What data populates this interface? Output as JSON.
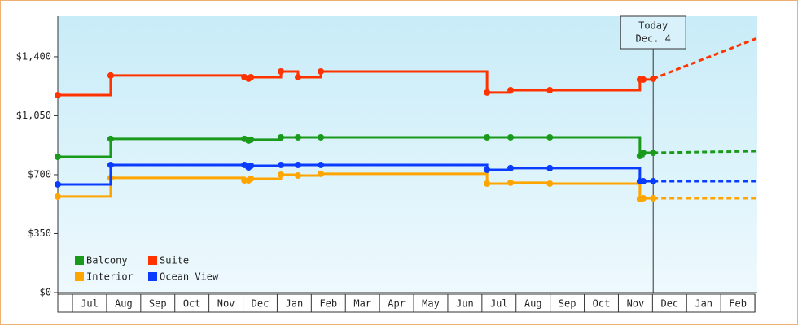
{
  "chart_data": {
    "type": "step-line",
    "xlim": [
      -0.43,
      20.07
    ],
    "ylim": [
      0,
      1641
    ],
    "yticks": [
      {
        "value": 0,
        "label": "$0"
      },
      {
        "value": 350,
        "label": "$350"
      },
      {
        "value": 700,
        "label": "$700"
      },
      {
        "value": 1050,
        "label": "$1,050"
      },
      {
        "value": 1400,
        "label": "$1,400"
      }
    ],
    "categories": [
      "Jul",
      "Aug",
      "Sep",
      "Oct",
      "Nov",
      "Dec",
      "Jan",
      "Feb",
      "Mar",
      "Apr",
      "May",
      "Jun",
      "Jul",
      "Aug",
      "Sep",
      "Oct",
      "Nov",
      "Dec",
      "Jan",
      "Feb"
    ],
    "x": [
      -0.43,
      1.12,
      5.04,
      5.16,
      5.23,
      6.11,
      6.61,
      7.28,
      12.15,
      12.84,
      13.99,
      16.63,
      16.73,
      17.02
    ],
    "projection_x": [
      17.02,
      20.07
    ],
    "series": [
      {
        "name": "Balcony",
        "color": "#1a9a1a",
        "values": [
          806,
          913,
          913,
          903,
          908,
          922,
          922,
          922,
          922,
          922,
          922,
          811,
          830,
          830
        ],
        "projection": [
          830,
          840
        ]
      },
      {
        "name": "Suite",
        "color": "#ff3300",
        "values": [
          1173,
          1289,
          1279,
          1270,
          1279,
          1313,
          1279,
          1313,
          1188,
          1202,
          1202,
          1265,
          1265,
          1270
        ],
        "projection": [
          1270,
          1511
        ]
      },
      {
        "name": "Interior",
        "color": "#ffa500",
        "values": [
          570,
          681,
          666,
          666,
          676,
          700,
          695,
          705,
          647,
          652,
          647,
          555,
          560,
          560
        ],
        "projection": [
          560,
          560
        ]
      },
      {
        "name": "Ocean View",
        "color": "#0a3cff",
        "values": [
          642,
          758,
          758,
          743,
          753,
          758,
          758,
          758,
          729,
          739,
          739,
          661,
          661,
          661
        ],
        "projection": [
          661,
          661
        ]
      }
    ],
    "annotation": {
      "lines": [
        "Today",
        "Dec. 4"
      ],
      "x": 17.02
    }
  }
}
